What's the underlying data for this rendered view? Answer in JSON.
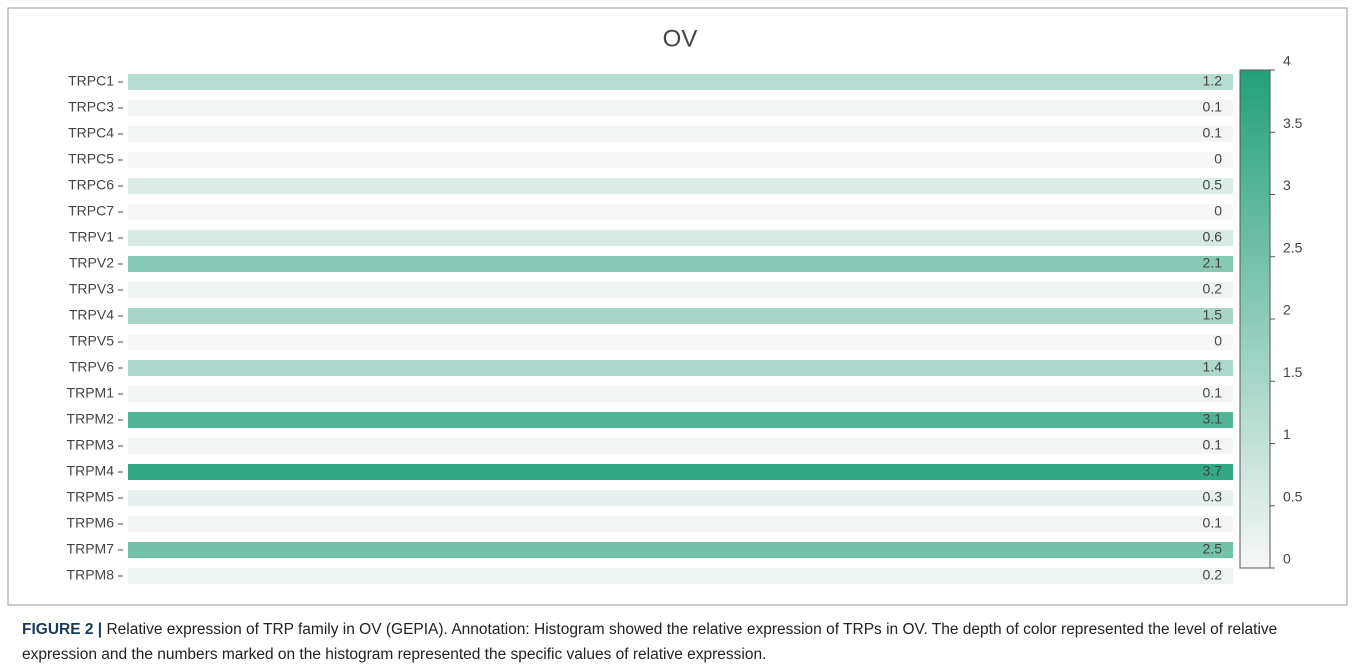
{
  "chart_data": {
    "type": "heatmap",
    "title": "OV",
    "categories": [
      "TRPC1",
      "TRPC3",
      "TRPC4",
      "TRPC5",
      "TRPC6",
      "TRPC7",
      "TRPV1",
      "TRPV2",
      "TRPV3",
      "TRPV4",
      "TRPV5",
      "TRPV6",
      "TRPM1",
      "TRPM2",
      "TRPM3",
      "TRPM4",
      "TRPM5",
      "TRPM6",
      "TRPM7",
      "TRPM8"
    ],
    "values": [
      1.2,
      0.1,
      0.1,
      0,
      0.5,
      0,
      0.6,
      2.1,
      0.2,
      1.5,
      0,
      1.4,
      0.1,
      3.1,
      0.1,
      3.7,
      0.3,
      0.1,
      2.5,
      0.2
    ],
    "colormap": [
      "#f7f7f7",
      "#22a07a"
    ],
    "zlim": [
      0,
      4
    ],
    "zticks": [
      0,
      0.5,
      1,
      1.5,
      2,
      2.5,
      3,
      3.5,
      4
    ]
  },
  "caption_label": "FIGURE 2 |",
  "caption": "Relative expression of TRP family in OV (GEPIA). Annotation: Histogram showed the relative expression of TRPs in OV. The depth of color represented the level of relative expression and the numbers marked on the histogram represented the specific values of relative expression."
}
